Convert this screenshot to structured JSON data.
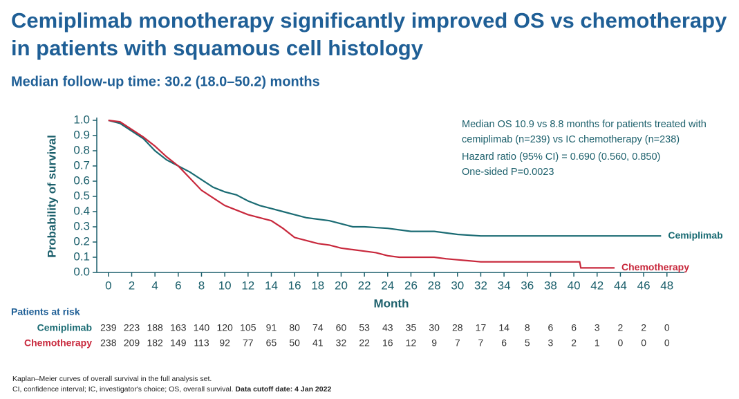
{
  "title_lines": [
    "Cemiplimab monotherapy significantly improved OS vs chemotherapy",
    "in patients with squamous cell histology"
  ],
  "subtitle": "Median follow-up time: 30.2 (18.0–50.2) months",
  "chart_data": {
    "type": "line",
    "x_label": "Month",
    "y_label": "Probability of survival",
    "xlim": [
      -1,
      49.5
    ],
    "ylim": [
      0,
      1
    ],
    "xticks": [
      0,
      2,
      4,
      6,
      8,
      10,
      12,
      14,
      16,
      18,
      20,
      22,
      24,
      26,
      28,
      30,
      32,
      34,
      36,
      38,
      40,
      42,
      44,
      46,
      48
    ],
    "yticks": [
      {
        "value": 0,
        "label": "0.0"
      },
      0.1,
      0.2,
      0.3,
      0.4,
      0.5,
      0.6,
      0.7,
      0.8,
      0.9,
      {
        "value": 1,
        "label": "1.0"
      }
    ],
    "annotations": [
      "Median OS 10.9 vs 8.8 months for patients treated with",
      "cemiplimab (n=239) vs IC chemotherapy (n=238)",
      "Hazard ratio (95% CI) = 0.690 (0.560, 0.850)",
      "One-sided P=0.0023"
    ],
    "series": [
      {
        "name": "Cemiplimab",
        "color": "#1a6b73",
        "x": [
          0,
          1,
          2,
          3,
          4,
          5,
          6,
          7,
          8,
          9,
          10,
          11,
          12,
          13,
          14,
          15,
          16,
          17,
          18,
          19,
          20,
          21,
          22,
          24,
          26,
          28,
          30,
          32,
          36,
          40,
          44,
          47.5
        ],
        "values": [
          1.0,
          0.98,
          0.93,
          0.88,
          0.8,
          0.74,
          0.7,
          0.66,
          0.61,
          0.56,
          0.53,
          0.51,
          0.47,
          0.44,
          0.42,
          0.4,
          0.38,
          0.36,
          0.35,
          0.34,
          0.32,
          0.3,
          0.3,
          0.29,
          0.27,
          0.27,
          0.25,
          0.24,
          0.24,
          0.24,
          0.24,
          0.24
        ]
      },
      {
        "name": "Chemotherapy",
        "color": "#c8283c",
        "x": [
          0,
          1,
          2,
          3,
          4,
          5,
          6,
          7,
          8,
          9,
          10,
          11,
          12,
          13,
          14,
          15,
          16,
          17,
          18,
          19,
          20,
          21,
          22,
          23,
          24,
          25,
          26,
          28,
          29,
          32,
          35,
          40,
          40.5,
          40.6,
          43.5
        ],
        "values": [
          1.0,
          0.99,
          0.94,
          0.89,
          0.83,
          0.76,
          0.7,
          0.62,
          0.54,
          0.49,
          0.44,
          0.41,
          0.38,
          0.36,
          0.34,
          0.29,
          0.23,
          0.21,
          0.19,
          0.18,
          0.16,
          0.15,
          0.14,
          0.13,
          0.11,
          0.1,
          0.1,
          0.1,
          0.09,
          0.07,
          0.07,
          0.07,
          0.07,
          0.03,
          0.03
        ]
      }
    ],
    "risk_table": {
      "title": "Patients at risk",
      "rows": [
        {
          "name": "Cemiplimab",
          "color": "#1a6b73",
          "values": [
            "239",
            "223",
            "188",
            "163",
            "140",
            "120",
            "105",
            "91",
            "80",
            "74",
            "60",
            "53",
            "43",
            "35",
            "30",
            "28",
            "17",
            "14",
            "8",
            "6",
            "6",
            "3",
            "2",
            "2",
            "0"
          ]
        },
        {
          "name": "Chemotherapy",
          "color": "#c8283c",
          "values": [
            "238",
            "209",
            "182",
            "149",
            "113",
            "92",
            "77",
            "65",
            "50",
            "41",
            "32",
            "22",
            "16",
            "12",
            "9",
            "7",
            "7",
            "6",
            "5",
            "3",
            "2",
            "1",
            "0",
            "0",
            "0"
          ]
        }
      ]
    }
  },
  "footnotes": [
    "Kaplan–Meier curves of overall survival in the full analysis set.",
    "CI, confidence interval; IC, investigator's choice; OS, overall survival.",
    "Data cutoff date: 4 Jan 2022"
  ]
}
